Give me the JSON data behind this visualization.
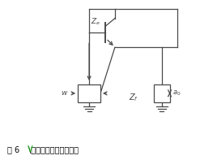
{
  "bg_color": "#ffffff",
  "line_color": "#4a4a4a",
  "caption_fig": "图 6  ",
  "caption_v": "\\串联负反馈微带线结构",
  "caption_color": "#000000",
  "caption_green": "#00aa00",
  "caption_fontsize": 7,
  "lw": 0.9
}
